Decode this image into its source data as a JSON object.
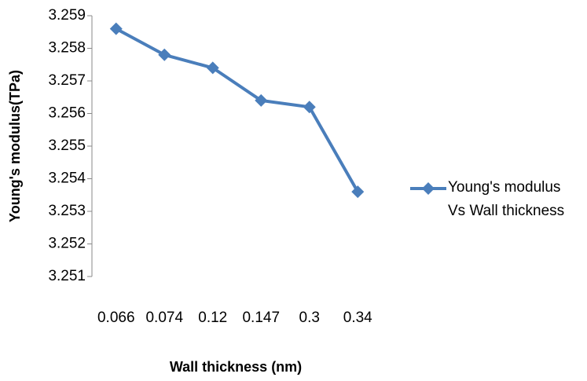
{
  "chart_data": {
    "type": "line",
    "categories": [
      "0.066",
      "0.074",
      "0.12",
      "0.147",
      "0.3",
      "0.34"
    ],
    "series": [
      {
        "name": "Young's modulus Vs Wall thickness",
        "color": "#4a7ebb",
        "values": [
          3.2586,
          3.2578,
          3.2574,
          3.2564,
          3.2562,
          3.2536
        ]
      }
    ],
    "ylim": [
      3.251,
      3.259
    ],
    "yticks": [
      3.251,
      3.252,
      3.253,
      3.254,
      3.255,
      3.256,
      3.257,
      3.258,
      3.259
    ],
    "xlabel": "Wall thickness (nm)",
    "ylabel": "Young's modulus(TPa)",
    "legend": "right"
  }
}
